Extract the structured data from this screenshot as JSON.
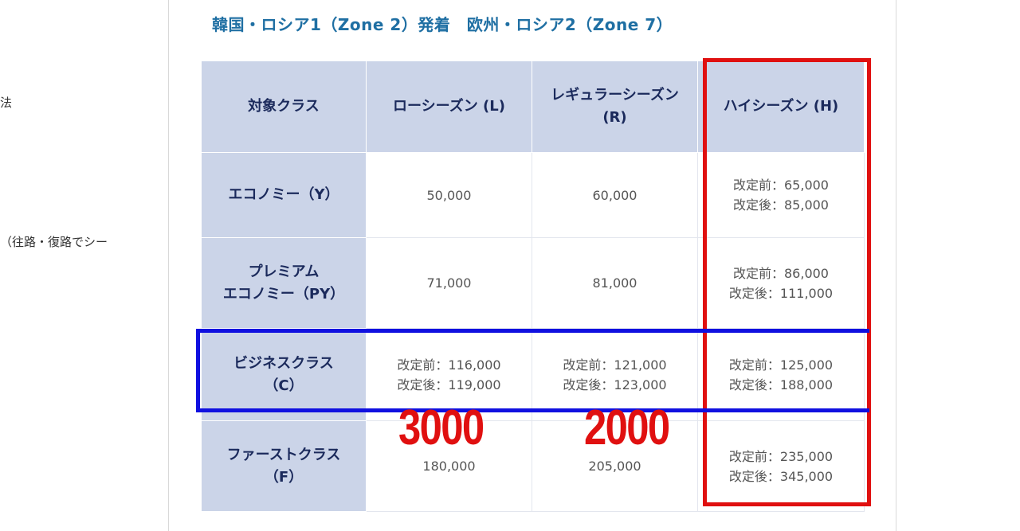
{
  "sidebar_fragments": {
    "text1": "法",
    "text2": "（往路・復路でシー"
  },
  "heading": "韓国・ロシア1（Zone 2）発着　欧州・ロシア2（Zone 7）",
  "table": {
    "headers": [
      "対象クラス",
      "ローシーズン (L)",
      "レギュラーシーズン (R)",
      "ハイシーズン (H)"
    ],
    "header_r_line1": "レギュラーシーズン",
    "header_r_line2": "(R)",
    "rows": [
      {
        "class_line1": "エコノミー（Y）",
        "class_line2": "",
        "low_line1": "50,000",
        "low_line2": "",
        "regular_line1": "60,000",
        "regular_line2": "",
        "high_line1": "改定前：65,000",
        "high_line2": "改定後：85,000"
      },
      {
        "class_line1": "プレミアム",
        "class_line2": "エコノミー（PY）",
        "low_line1": "71,000",
        "low_line2": "",
        "regular_line1": "81,000",
        "regular_line2": "",
        "high_line1": "改定前：86,000",
        "high_line2": "改定後：111,000"
      },
      {
        "class_line1": "ビジネスクラス",
        "class_line2": "（C）",
        "low_line1": "改定前：116,000",
        "low_line2": "改定後：119,000",
        "regular_line1": "改定前：121,000",
        "regular_line2": "改定後：123,000",
        "high_line1": "改定前：125,000",
        "high_line2": "改定後：188,000"
      },
      {
        "class_line1": "ファーストクラス",
        "class_line2": "（F）",
        "low_line1": "180,000",
        "low_line2": "",
        "regular_line1": "205,000",
        "regular_line2": "",
        "high_line1": "改定前：235,000",
        "high_line2": "改定後：345,000"
      }
    ]
  },
  "annotations": {
    "low_diff": "3000",
    "regular_diff": "2000",
    "red_color": "#e01010",
    "blue_color": "#1010e0"
  }
}
